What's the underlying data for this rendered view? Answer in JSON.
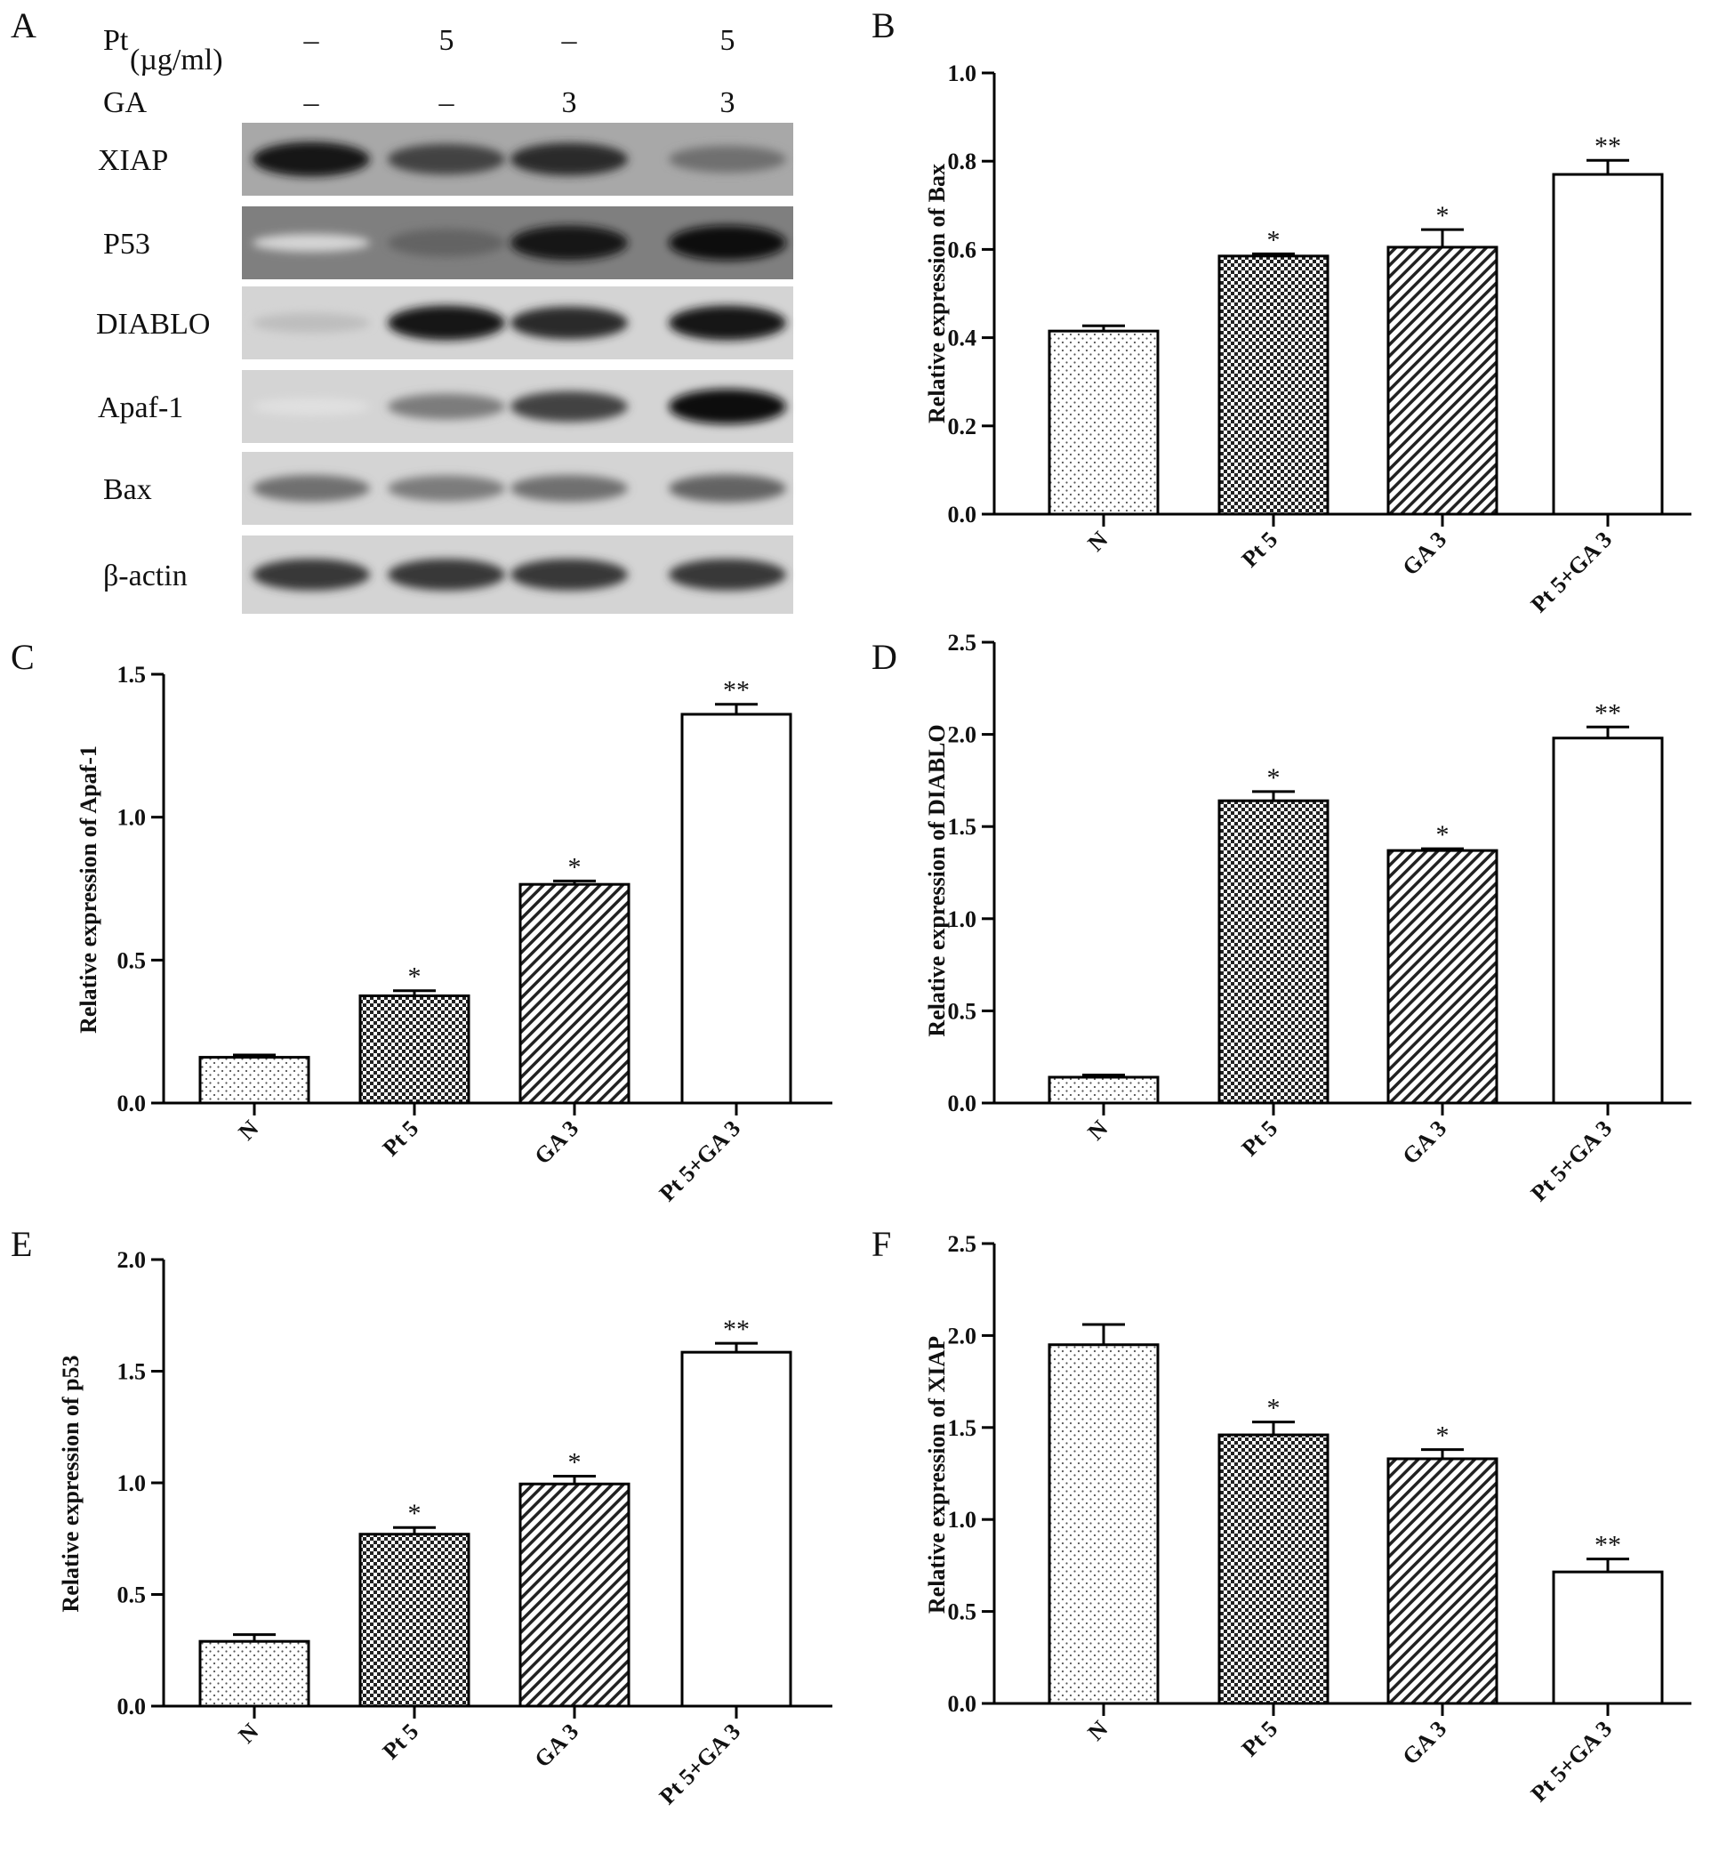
{
  "western_blot": {
    "panel_letter": "A",
    "headers": [
      {
        "label": "Pt",
        "sub": "(µg/ml)",
        "values": [
          "–",
          "5",
          "–",
          "5"
        ]
      },
      {
        "label": "GA",
        "sub": "",
        "values": [
          "–",
          "–",
          "3",
          "3"
        ]
      }
    ],
    "rows": [
      {
        "label": "XIAP",
        "intensity": [
          0.95,
          0.75,
          0.85,
          0.55
        ]
      },
      {
        "label": "P53",
        "intensity": [
          0.1,
          0.6,
          0.95,
          0.98
        ]
      },
      {
        "label": "DIABLO",
        "intensity": [
          0.2,
          0.95,
          0.85,
          0.95
        ]
      },
      {
        "label": "Apaf-1",
        "intensity": [
          0.05,
          0.5,
          0.75,
          0.98
        ]
      },
      {
        "label": "Bax",
        "intensity": [
          0.55,
          0.5,
          0.55,
          0.6
        ]
      },
      {
        "label": "β-actin",
        "intensity": [
          0.8,
          0.8,
          0.8,
          0.8
        ]
      }
    ]
  },
  "chart_data": [
    {
      "type": "bar",
      "panel": "B",
      "categories": [
        "N",
        "Pt 5",
        "GA 3",
        "Pt 5+GA 3"
      ],
      "values": [
        0.415,
        0.585,
        0.605,
        0.77
      ],
      "errors": [
        0.012,
        0.005,
        0.04,
        0.032
      ],
      "annotations": [
        "",
        "*",
        "*",
        "**"
      ],
      "ylabel": "Relative expression of Bax",
      "ylim": [
        0,
        1.0
      ],
      "yticks": [
        "0.0",
        "0.2",
        "0.4",
        "0.6",
        "0.8",
        "1.0"
      ]
    },
    {
      "type": "bar",
      "panel": "C",
      "categories": [
        "N",
        "Pt 5",
        "GA 3",
        "Pt 5+GA 3"
      ],
      "values": [
        0.16,
        0.375,
        0.765,
        1.36
      ],
      "errors": [
        0.008,
        0.018,
        0.012,
        0.035
      ],
      "annotations": [
        "",
        "*",
        "*",
        "**"
      ],
      "ylabel": "Relative expression of Apaf-1",
      "ylim": [
        0,
        1.5
      ],
      "yticks": [
        "0.0",
        "0.5",
        "1.0",
        "1.5"
      ]
    },
    {
      "type": "bar",
      "panel": "D",
      "categories": [
        "N",
        "Pt 5",
        "GA 3",
        "Pt 5+GA 3"
      ],
      "values": [
        0.14,
        1.64,
        1.37,
        1.98
      ],
      "errors": [
        0.012,
        0.05,
        0.01,
        0.06
      ],
      "annotations": [
        "",
        "*",
        "*",
        "**"
      ],
      "ylabel": "Relative expression of DIABLO",
      "ylim": [
        0,
        2.5
      ],
      "yticks": [
        "0.0",
        "0.5",
        "1.0",
        "1.5",
        "2.0",
        "2.5"
      ]
    },
    {
      "type": "bar",
      "panel": "E",
      "categories": [
        "N",
        "Pt 5",
        "GA 3",
        "Pt 5+GA 3"
      ],
      "values": [
        0.29,
        0.77,
        0.995,
        1.585
      ],
      "errors": [
        0.03,
        0.03,
        0.035,
        0.04
      ],
      "annotations": [
        "",
        "*",
        "*",
        "**"
      ],
      "ylabel": "Relative expression of p53",
      "ylim": [
        0,
        2.0
      ],
      "yticks": [
        "0.0",
        "0.5",
        "1.0",
        "1.5",
        "2.0"
      ]
    },
    {
      "type": "bar",
      "panel": "F",
      "categories": [
        "N",
        "Pt 5",
        "GA 3",
        "Pt 5+GA 3"
      ],
      "values": [
        1.95,
        1.46,
        1.33,
        0.715
      ],
      "errors": [
        0.11,
        0.07,
        0.05,
        0.07
      ],
      "annotations": [
        "",
        "*",
        "*",
        "**"
      ],
      "ylabel": "Relative expression of XIAP",
      "ylim": [
        0,
        2.5
      ],
      "yticks": [
        "0.0",
        "0.5",
        "1.0",
        "1.5",
        "2.0",
        "2.5"
      ]
    }
  ],
  "bar_patterns": [
    "dots",
    "checker",
    "diagonal",
    "none"
  ]
}
